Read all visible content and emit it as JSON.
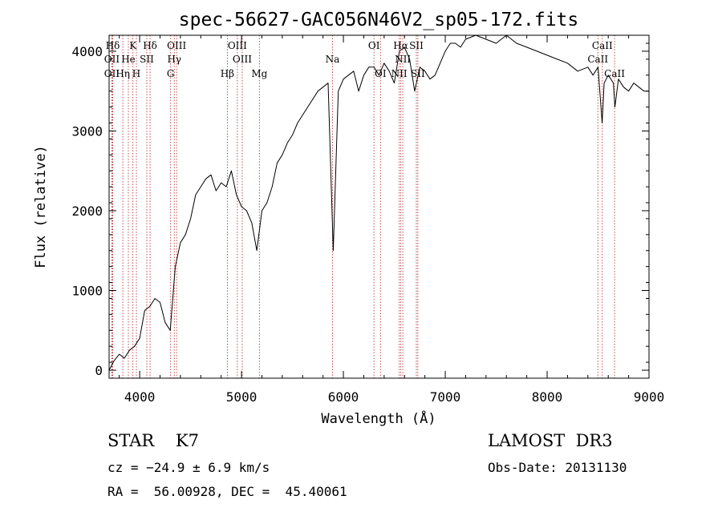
{
  "chart_data": {
    "type": "line",
    "title": "spec-56627-GAC056N46V2_sp05-172.fits",
    "xlabel": "Wavelength (Å)",
    "ylabel": "Flux (relative)",
    "xlim": [
      3700,
      9000
    ],
    "ylim": [
      -100,
      4200
    ],
    "x_ticks": [
      4000,
      5000,
      6000,
      7000,
      8000,
      9000
    ],
    "y_ticks": [
      0,
      1000,
      2000,
      3000,
      4000
    ],
    "series": [
      {
        "x": [
          3700,
          3750,
          3800,
          3850,
          3900,
          3950,
          4000,
          4050,
          4100,
          4150,
          4200,
          4250,
          4300,
          4350,
          4400,
          4450,
          4500,
          4550,
          4600,
          4650,
          4700,
          4750,
          4800,
          4850,
          4900,
          4950,
          5000,
          5050,
          5100,
          5150,
          5200,
          5250,
          5300,
          5350,
          5400,
          5450,
          5500,
          5550,
          5600,
          5650,
          5700,
          5750,
          5800,
          5850,
          5900,
          5950,
          6000,
          6050,
          6100,
          6150,
          6200,
          6250,
          6300,
          6350,
          6400,
          6450,
          6500,
          6550,
          6600,
          6650,
          6700,
          6750,
          6800,
          6850,
          6900,
          6950,
          7000,
          7050,
          7100,
          7150,
          7200,
          7300,
          7400,
          7500,
          7600,
          7700,
          7800,
          7900,
          8000,
          8100,
          8200,
          8300,
          8400,
          8450,
          8500,
          8540,
          8560,
          8600,
          8650,
          8665,
          8700,
          8750,
          8800,
          8850,
          8900,
          8950,
          9000
        ],
        "y": [
          0,
          120,
          200,
          150,
          250,
          300,
          400,
          750,
          800,
          900,
          850,
          600,
          500,
          1300,
          1600,
          1700,
          1900,
          2200,
          2300,
          2400,
          2450,
          2250,
          2350,
          2300,
          2500,
          2200,
          2050,
          2000,
          1850,
          1500,
          2000,
          2100,
          2300,
          2600,
          2700,
          2850,
          2950,
          3100,
          3200,
          3300,
          3400,
          3500,
          3550,
          3600,
          1500,
          3500,
          3650,
          3700,
          3750,
          3500,
          3700,
          3800,
          3800,
          3700,
          3850,
          3750,
          3600,
          4000,
          4050,
          3900,
          3500,
          3800,
          3750,
          3650,
          3700,
          3850,
          4000,
          4100,
          4100,
          4050,
          4150,
          4200,
          4150,
          4100,
          4200,
          4100,
          4050,
          4000,
          3950,
          3900,
          3850,
          3750,
          3800,
          3700,
          3800,
          3100,
          3600,
          3700,
          3600,
          3300,
          3650,
          3550,
          3500,
          3600,
          3550,
          3500,
          3500
        ]
      }
    ],
    "spectral_lines": [
      {
        "label": "Hδ",
        "x": 3736,
        "row": 0
      },
      {
        "label": "K",
        "x": 3934,
        "row": 0
      },
      {
        "label": "Hδ",
        "x": 4102,
        "row": 0
      },
      {
        "label": "OIII",
        "x": 4363,
        "row": 0
      },
      {
        "label": "OIII",
        "x": 4959,
        "row": 0
      },
      {
        "label": "OI",
        "x": 6300,
        "row": 0
      },
      {
        "label": "Hα",
        "x": 6563,
        "row": 0
      },
      {
        "label": "SII",
        "x": 6716,
        "row": 0
      },
      {
        "label": "CaII",
        "x": 8542,
        "row": 0
      },
      {
        "label": "OII",
        "x": 3727,
        "row": 1
      },
      {
        "label": "He",
        "x": 3889,
        "row": 1
      },
      {
        "label": "SII",
        "x": 4070,
        "row": 1
      },
      {
        "label": "Hγ",
        "x": 4340,
        "row": 1
      },
      {
        "label": "OIII",
        "x": 5007,
        "row": 1
      },
      {
        "label": "Na",
        "x": 5893,
        "row": 1
      },
      {
        "label": "NII",
        "x": 6583,
        "row": 1
      },
      {
        "label": "CaII",
        "x": 8498,
        "row": 1
      },
      {
        "label": "OII",
        "x": 3727,
        "row": 2
      },
      {
        "label": "Hη",
        "x": 3835,
        "row": 2
      },
      {
        "label": "H",
        "x": 3968,
        "row": 2
      },
      {
        "label": "G",
        "x": 4304,
        "row": 2
      },
      {
        "label": "Hβ",
        "x": 4861,
        "row": 2
      },
      {
        "label": "Mg",
        "x": 5175,
        "row": 2
      },
      {
        "label": "OI",
        "x": 6364,
        "row": 2
      },
      {
        "label": "NII",
        "x": 6548,
        "row": 2
      },
      {
        "label": "SII",
        "x": 6731,
        "row": 2
      },
      {
        "label": "CaII",
        "x": 8662,
        "row": 2
      }
    ],
    "grid": false,
    "colors": {
      "spectrum": "#000000",
      "line_markers": "#b22222",
      "axes": "#000000"
    }
  },
  "info": {
    "class_text": "STAR    K7",
    "survey_text": "LAMOST  DR3",
    "cz_text": "cz = −24.9 ± 6.9 km/s",
    "obsdate_text": "Obs-Date: 20131130",
    "radec_text": "RA =  56.00928, DEC =  45.40061"
  }
}
